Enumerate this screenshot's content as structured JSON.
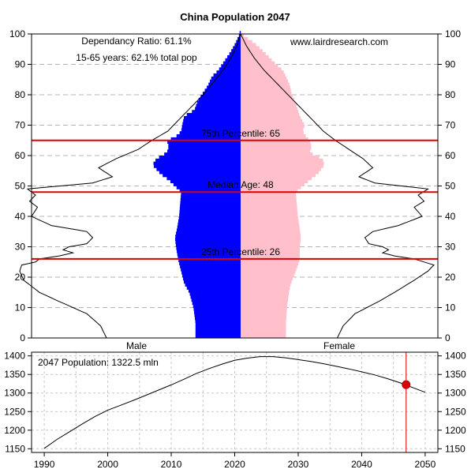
{
  "chart_data": [
    {
      "type": "population-pyramid",
      "title": "China Population 2047",
      "notes": [
        "Dependancy Ratio: 61.1%",
        "15-65 years: 62.1% total pop"
      ],
      "source": "www.lairdresearch.com",
      "xlabels": {
        "left": "Male",
        "right": "Female"
      },
      "ylim": [
        0,
        100
      ],
      "yticks": [
        0,
        10,
        20,
        30,
        40,
        50,
        60,
        70,
        80,
        90,
        100
      ],
      "grid": "horizontal dashed",
      "colors": {
        "male": "#0000ff",
        "female": "#ffc0cb",
        "markers": "#dd0000"
      },
      "markers": [
        {
          "label": "75th Percentile: 65",
          "age": 65
        },
        {
          "label": "Median Age: 48",
          "age": 48
        },
        {
          "label": "25th Percentile: 26",
          "age": 26
        }
      ],
      "male_bar_profile": [
        [
          0,
          0.44
        ],
        [
          5,
          0.44
        ],
        [
          10,
          0.46
        ],
        [
          15,
          0.5
        ],
        [
          18,
          0.55
        ],
        [
          22,
          0.58
        ],
        [
          26,
          0.61
        ],
        [
          30,
          0.63
        ],
        [
          33,
          0.64
        ],
        [
          36,
          0.62
        ],
        [
          40,
          0.6
        ],
        [
          44,
          0.59
        ],
        [
          48,
          0.58
        ],
        [
          52,
          0.7
        ],
        [
          54,
          0.78
        ],
        [
          57,
          0.86
        ],
        [
          59,
          0.82
        ],
        [
          61,
          0.72
        ],
        [
          63,
          0.7
        ],
        [
          65,
          0.72
        ],
        [
          66,
          0.64
        ],
        [
          68,
          0.58
        ],
        [
          70,
          0.57
        ],
        [
          73,
          0.55
        ],
        [
          75,
          0.45
        ],
        [
          78,
          0.42
        ],
        [
          80,
          0.38
        ],
        [
          83,
          0.32
        ],
        [
          86,
          0.28
        ],
        [
          88,
          0.22
        ],
        [
          91,
          0.16
        ],
        [
          94,
          0.1
        ],
        [
          97,
          0.05
        ],
        [
          100,
          0.01
        ]
      ],
      "female_bar_profile": [
        [
          0,
          0.46
        ],
        [
          5,
          0.46
        ],
        [
          10,
          0.47
        ],
        [
          15,
          0.49
        ],
        [
          18,
          0.51
        ],
        [
          22,
          0.56
        ],
        [
          26,
          0.6
        ],
        [
          30,
          0.6
        ],
        [
          33,
          0.61
        ],
        [
          36,
          0.6
        ],
        [
          40,
          0.58
        ],
        [
          44,
          0.57
        ],
        [
          48,
          0.56
        ],
        [
          52,
          0.7
        ],
        [
          54,
          0.78
        ],
        [
          57,
          0.85
        ],
        [
          59,
          0.83
        ],
        [
          61,
          0.7
        ],
        [
          63,
          0.72
        ],
        [
          65,
          0.7
        ],
        [
          66,
          0.67
        ],
        [
          68,
          0.63
        ],
        [
          70,
          0.65
        ],
        [
          73,
          0.6
        ],
        [
          75,
          0.58
        ],
        [
          78,
          0.55
        ],
        [
          80,
          0.52
        ],
        [
          83,
          0.5
        ],
        [
          86,
          0.46
        ],
        [
          88,
          0.43
        ],
        [
          91,
          0.33
        ],
        [
          94,
          0.24
        ],
        [
          97,
          0.14
        ],
        [
          100,
          0.01
        ]
      ],
      "male_outline_profile": [
        [
          0,
          0.68
        ],
        [
          4,
          0.71
        ],
        [
          8,
          0.78
        ],
        [
          12,
          0.92
        ],
        [
          15,
          1.02
        ],
        [
          19,
          1.1
        ],
        [
          22,
          1.12
        ],
        [
          24,
          1.11
        ],
        [
          25,
          1.04
        ],
        [
          26,
          1.02
        ],
        [
          27,
          0.92
        ],
        [
          28,
          0.85
        ],
        [
          29,
          0.9
        ],
        [
          30,
          0.87
        ],
        [
          31,
          0.78
        ],
        [
          33,
          0.75
        ],
        [
          35,
          0.78
        ],
        [
          37,
          0.96
        ],
        [
          40,
          1.06
        ],
        [
          43,
          1.03
        ],
        [
          45,
          1.07
        ],
        [
          47,
          1.04
        ],
        [
          49,
          1.08
        ],
        [
          51,
          0.75
        ],
        [
          53,
          0.65
        ],
        [
          56,
          0.72
        ],
        [
          59,
          0.63
        ],
        [
          62,
          0.52
        ],
        [
          65,
          0.45
        ],
        [
          68,
          0.37
        ],
        [
          72,
          0.31
        ],
        [
          76,
          0.25
        ],
        [
          80,
          0.19
        ],
        [
          84,
          0.14
        ],
        [
          88,
          0.09
        ],
        [
          92,
          0.05
        ],
        [
          96,
          0.02
        ],
        [
          100,
          0.0
        ]
      ],
      "female_outline_profile": [
        [
          0,
          0.49
        ],
        [
          4,
          0.52
        ],
        [
          8,
          0.58
        ],
        [
          12,
          0.7
        ],
        [
          15,
          0.78
        ],
        [
          19,
          0.88
        ],
        [
          22,
          0.95
        ],
        [
          24,
          0.98
        ],
        [
          25,
          0.93
        ],
        [
          26,
          0.88
        ],
        [
          27,
          0.78
        ],
        [
          28,
          0.72
        ],
        [
          29,
          0.75
        ],
        [
          30,
          0.72
        ],
        [
          31,
          0.65
        ],
        [
          33,
          0.63
        ],
        [
          35,
          0.67
        ],
        [
          37,
          0.8
        ],
        [
          40,
          0.92
        ],
        [
          43,
          0.88
        ],
        [
          45,
          0.93
        ],
        [
          47,
          0.9
        ],
        [
          49,
          0.95
        ],
        [
          51,
          0.68
        ],
        [
          53,
          0.6
        ],
        [
          56,
          0.67
        ],
        [
          59,
          0.62
        ],
        [
          62,
          0.55
        ],
        [
          65,
          0.48
        ],
        [
          68,
          0.42
        ],
        [
          72,
          0.36
        ],
        [
          76,
          0.3
        ],
        [
          80,
          0.24
        ],
        [
          84,
          0.18
        ],
        [
          88,
          0.12
        ],
        [
          92,
          0.07
        ],
        [
          96,
          0.03
        ],
        [
          100,
          0.0
        ]
      ]
    },
    {
      "type": "line",
      "annotation": "2047 Population: 1322.5 mln",
      "x": [
        1990,
        1992,
        1994,
        1996,
        1998,
        2000,
        2002,
        2004,
        2006,
        2008,
        2010,
        2012,
        2014,
        2016,
        2018,
        2020,
        2022,
        2024,
        2026,
        2028,
        2030,
        2032,
        2034,
        2036,
        2038,
        2040,
        2042,
        2044,
        2046,
        2048,
        2050
      ],
      "y": [
        1151,
        1175,
        1196,
        1217,
        1237,
        1254,
        1267,
        1280,
        1294,
        1308,
        1322,
        1337,
        1353,
        1366,
        1378,
        1388,
        1394,
        1398,
        1398,
        1395,
        1390,
        1385,
        1379,
        1372,
        1365,
        1357,
        1349,
        1339,
        1328,
        1315,
        1302
      ],
      "highlight": {
        "x": 2047,
        "y": 1322.5
      },
      "xlim": [
        1988,
        2052
      ],
      "ylim": [
        1140,
        1410
      ],
      "xticks": [
        1990,
        2000,
        2010,
        2020,
        2030,
        2040,
        2050
      ],
      "yticks": [
        1150,
        1200,
        1250,
        1300,
        1350,
        1400
      ],
      "grid": "dotted both",
      "colors": {
        "line": "#000000",
        "highlight": "#dd0000"
      }
    }
  ]
}
